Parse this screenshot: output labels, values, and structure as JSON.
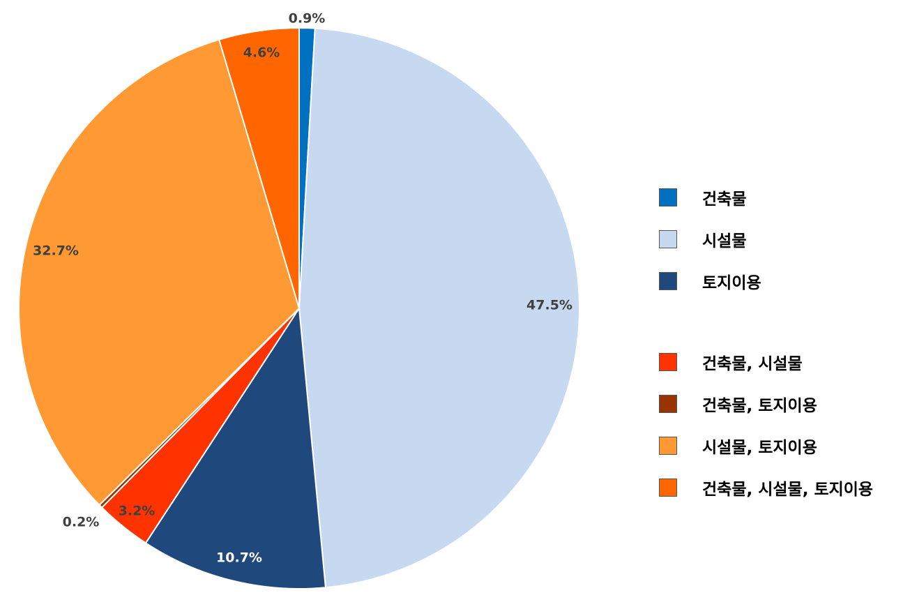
{
  "chart_data": {
    "type": "pie",
    "start_angle_deg": 0,
    "direction": "clockwise",
    "slices": [
      {
        "name": "건축물",
        "value": 0.9,
        "label": "0.9%",
        "color": "#0070C0"
      },
      {
        "name": "시설물",
        "value": 47.5,
        "label": "47.5%",
        "color": "#C6D9F1"
      },
      {
        "name": "토지이용",
        "value": 10.7,
        "label": "10.7%",
        "color": "#1F497D"
      },
      {
        "name": "건축물, 시설물",
        "value": 3.2,
        "label": "3.2%",
        "color": "#FF3300"
      },
      {
        "name": "건축물, 토지이용",
        "value": 0.2,
        "label": "0.2%",
        "color": "#993300"
      },
      {
        "name": "시설물, 토지이용",
        "value": 32.7,
        "label": "32.7%",
        "color": "#FF9933"
      },
      {
        "name": "건축물, 시설물, 토지이용",
        "value": 4.6,
        "label": "4.6%",
        "color": "#FF6600"
      }
    ],
    "legend_position": "right",
    "title": "",
    "label_color": "#404040"
  },
  "legend": {
    "items": [
      {
        "label": "건축물",
        "color": "#0070C0"
      },
      {
        "label": "시설물",
        "color": "#C6D9F1"
      },
      {
        "label": "토지이용",
        "color": "#1F497D"
      },
      {
        "label": "건축물, 시설물",
        "color": "#FF3300"
      },
      {
        "label": "건축물, 토지이용",
        "color": "#993300"
      },
      {
        "label": "시설물, 토지이용",
        "color": "#FF9933"
      },
      {
        "label": "건축물, 시설물, 토지이용",
        "color": "#FF6600"
      }
    ]
  }
}
